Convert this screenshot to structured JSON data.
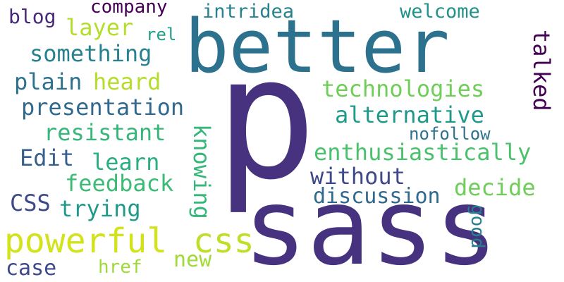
{
  "cloud": {
    "words": [
      {
        "text": "p",
        "color": "#46327e"
      },
      {
        "text": "sass",
        "color": "#46327e"
      },
      {
        "text": "better",
        "color": "#2c728e"
      },
      {
        "text": "powerful",
        "color": "#d2e21b"
      },
      {
        "text": "css",
        "color": "#bddf26"
      },
      {
        "text": "technologies",
        "color": "#6ece58"
      },
      {
        "text": "enthusiastically",
        "color": "#4ac16d"
      },
      {
        "text": "presentation",
        "color": "#31688e"
      },
      {
        "text": "alternative",
        "color": "#1f9a8a"
      },
      {
        "text": "resistant",
        "color": "#35b779"
      },
      {
        "text": "something",
        "color": "#26828e"
      },
      {
        "text": "feedback",
        "color": "#3bbb75"
      },
      {
        "text": "discussion",
        "color": "#31688e"
      },
      {
        "text": "without",
        "color": "#3e4989"
      },
      {
        "text": "decide",
        "color": "#6ece58"
      },
      {
        "text": "welcome",
        "color": "#21918c"
      },
      {
        "text": "intridea",
        "color": "#26828e"
      },
      {
        "text": "talked",
        "color": "#440154"
      },
      {
        "text": "knowing",
        "color": "#35b779"
      },
      {
        "text": "nofollow",
        "color": "#2c728e"
      },
      {
        "text": "trying",
        "color": "#1f9a8a"
      },
      {
        "text": "learn",
        "color": "#28ae80"
      },
      {
        "text": "plain",
        "color": "#2c728e"
      },
      {
        "text": "heard",
        "color": "#b5de2b"
      },
      {
        "text": "Edit",
        "color": "#355f8d"
      },
      {
        "text": "CSS",
        "color": "#3e4989"
      },
      {
        "text": "company",
        "color": "#440154"
      },
      {
        "text": "layer",
        "color": "#b5de2b"
      },
      {
        "text": "blog",
        "color": "#482878"
      },
      {
        "text": "rel",
        "color": "#1fa088"
      },
      {
        "text": "new",
        "color": "#a0da39"
      },
      {
        "text": "href",
        "color": "#a0da39"
      },
      {
        "text": "case",
        "color": "#3e4989"
      },
      {
        "text": "good",
        "color": "#277f8e"
      }
    ]
  }
}
